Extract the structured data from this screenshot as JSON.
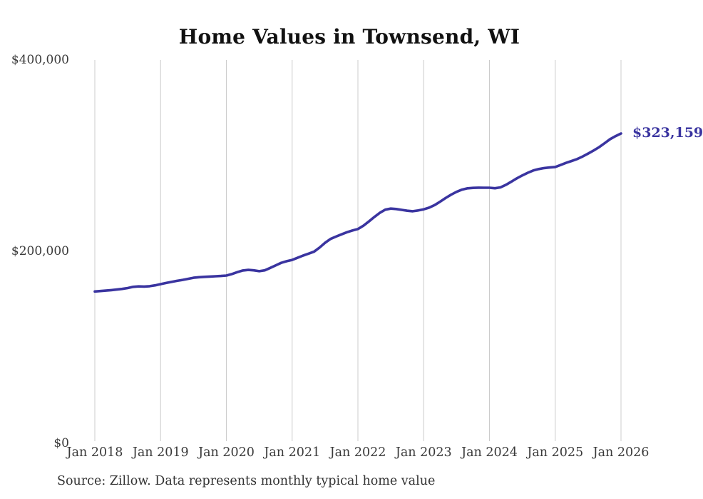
{
  "page": {
    "title": "Home Values in Townsend, WI",
    "source_note": "Source: Zillow. Data represents monthly typical home value"
  },
  "chart_data": {
    "type": "line",
    "title": "Home Values in Townsend, WI",
    "series_name": "Monthly typical home value",
    "unit": "USD",
    "ylim": [
      0,
      400000
    ],
    "grid": "vertical-only",
    "legend_position": "none",
    "line_color": "#3a34a0",
    "grid_color": "#cccccc",
    "axis_text_color": "#3a3a3a",
    "end_label": "$323,159",
    "end_value": 323159,
    "y_ticks": [
      {
        "value": 0,
        "label": "$0"
      },
      {
        "value": 200000,
        "label": "$200,000"
      },
      {
        "value": 400000,
        "label": "$400,000"
      }
    ],
    "x_tick_labels": [
      "Jan 2018",
      "Jan 2019",
      "Jan 2020",
      "Jan 2021",
      "Jan 2022",
      "Jan 2023",
      "Jan 2024",
      "Jan 2025",
      "Jan 2026"
    ],
    "x": [
      "2018-01",
      "2018-02",
      "2018-03",
      "2018-04",
      "2018-05",
      "2018-06",
      "2018-07",
      "2018-08",
      "2018-09",
      "2018-10",
      "2018-11",
      "2018-12",
      "2019-01",
      "2019-02",
      "2019-03",
      "2019-04",
      "2019-05",
      "2019-06",
      "2019-07",
      "2019-08",
      "2019-09",
      "2019-10",
      "2019-11",
      "2019-12",
      "2020-01",
      "2020-02",
      "2020-03",
      "2020-04",
      "2020-05",
      "2020-06",
      "2020-07",
      "2020-08",
      "2020-09",
      "2020-10",
      "2020-11",
      "2020-12",
      "2021-01",
      "2021-02",
      "2021-03",
      "2021-04",
      "2021-05",
      "2021-06",
      "2021-07",
      "2021-08",
      "2021-09",
      "2021-10",
      "2021-11",
      "2021-12",
      "2022-01",
      "2022-02",
      "2022-03",
      "2022-04",
      "2022-05",
      "2022-06",
      "2022-07",
      "2022-08",
      "2022-09",
      "2022-10",
      "2022-11",
      "2022-12",
      "2023-01",
      "2023-02",
      "2023-03",
      "2023-04",
      "2023-05",
      "2023-06",
      "2023-07",
      "2023-08",
      "2023-09",
      "2023-10",
      "2023-11",
      "2023-12",
      "2024-01",
      "2024-02",
      "2024-03",
      "2024-04",
      "2024-05",
      "2024-06",
      "2024-07",
      "2024-08",
      "2024-09",
      "2024-10",
      "2024-11",
      "2024-12",
      "2025-01",
      "2025-02",
      "2025-03",
      "2025-04",
      "2025-05",
      "2025-06",
      "2025-07",
      "2025-08",
      "2025-09",
      "2025-10",
      "2025-11",
      "2025-12",
      "2026-01"
    ],
    "values": [
      158000,
      158400,
      158900,
      159400,
      160000,
      160700,
      161600,
      162800,
      163300,
      163100,
      163500,
      164400,
      165700,
      166900,
      168000,
      169100,
      170100,
      171200,
      172300,
      172900,
      173300,
      173600,
      173900,
      174200,
      174600,
      176200,
      178200,
      179900,
      180500,
      180100,
      179200,
      180100,
      182600,
      185300,
      187900,
      189600,
      191000,
      193200,
      195500,
      197500,
      199600,
      203900,
      208900,
      212900,
      215400,
      217700,
      219900,
      221700,
      223300,
      226700,
      231200,
      235900,
      240200,
      243500,
      244600,
      244200,
      243300,
      242400,
      241900,
      242700,
      243900,
      245600,
      248300,
      251900,
      255700,
      259200,
      262200,
      264500,
      265800,
      266300,
      266500,
      266400,
      266400,
      265900,
      266800,
      269500,
      272800,
      276300,
      279300,
      282100,
      284500,
      286000,
      287000,
      287600,
      288100,
      290200,
      292500,
      294400,
      296400,
      299100,
      302200,
      305400,
      308900,
      312900,
      317200,
      320400,
      323159
    ]
  }
}
